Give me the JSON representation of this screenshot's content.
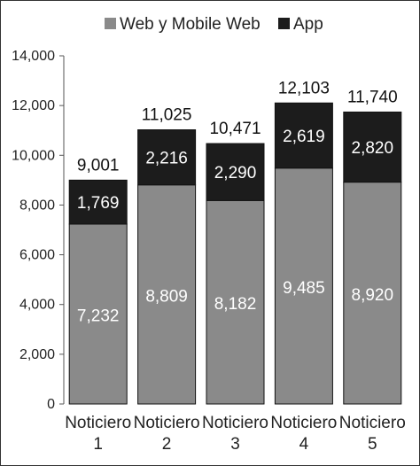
{
  "chart_data": {
    "type": "bar",
    "stacked": true,
    "categories": [
      "Noticiero 1",
      "Noticiero 2",
      "Noticiero 3",
      "Noticiero 4",
      "Noticiero 5"
    ],
    "category_lines": [
      [
        "Noticiero",
        "1"
      ],
      [
        "Noticiero",
        "2"
      ],
      [
        "Noticiero",
        "3"
      ],
      [
        "Noticiero",
        "4"
      ],
      [
        "Noticiero",
        "5"
      ]
    ],
    "series": [
      {
        "name": "Web y Mobile Web",
        "values": [
          7232,
          8809,
          8182,
          9485,
          8920
        ],
        "labels": [
          "7,232",
          "8,809",
          "8,182",
          "9,485",
          "8,920"
        ],
        "color": "#8a8a8a"
      },
      {
        "name": "App",
        "values": [
          1769,
          2216,
          2290,
          2619,
          2820
        ],
        "labels": [
          "1,769",
          "2,216",
          "2,290",
          "2,619",
          "2,820"
        ],
        "color": "#1c1c1c"
      }
    ],
    "totals": [
      9001,
      11025,
      10471,
      12103,
      11740
    ],
    "total_labels": [
      "9,001",
      "11,025",
      "10,471",
      "12,103",
      "11,740"
    ],
    "ylim": [
      0,
      14000
    ],
    "yticks": [
      0,
      2000,
      4000,
      6000,
      8000,
      10000,
      12000,
      14000
    ],
    "ytick_labels": [
      "0",
      "2,000",
      "4,000",
      "6,000",
      "8,000",
      "10,000",
      "12,000",
      "14,000"
    ],
    "legend_position": "top",
    "grid": false,
    "title": "",
    "xlabel": "",
    "ylabel": ""
  }
}
